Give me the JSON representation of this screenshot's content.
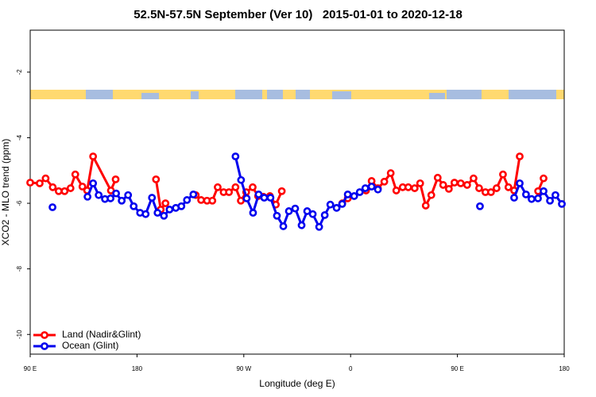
{
  "chart_data": {
    "type": "line",
    "title": "52.5N-57.5N September (Ver 10)   2015-01-01 to 2020-12-18",
    "x_label": "Longitude (deg E)",
    "y_label": "XCO2 - MLO trend (ppm)",
    "xlim": [
      90,
      540
    ],
    "ylim": [
      -10.6,
      -0.72
    ],
    "xticks": [
      {
        "value": 90,
        "label": "90 E"
      },
      {
        "value": 180,
        "label": "180"
      },
      {
        "value": 270,
        "label": "90 W"
      },
      {
        "value": 360,
        "label": "0"
      },
      {
        "value": 450,
        "label": "90 E"
      },
      {
        "value": 540,
        "label": "180"
      }
    ],
    "yticks": [
      -2,
      -4,
      -6,
      -8,
      -10
    ],
    "legend_position": "bottom-left",
    "series": [
      {
        "name": "Land (Nadir&Glint)",
        "color": "#ff0000",
        "x": [
          90,
          98,
          103,
          109,
          114,
          119,
          124,
          128,
          134,
          138,
          143,
          158,
          162,
          null,
          196,
          200,
          204,
          null,
          229.5,
          234,
          239,
          243.5,
          248,
          253,
          257.5,
          263,
          267.5,
          272,
          277.5,
          282,
          286.5,
          292,
          297,
          302,
          null,
          353,
          357.6,
          373,
          377.7,
          383,
          388.4,
          393.8,
          398.5,
          403.9,
          408.6,
          414,
          418.6,
          423.3,
          428,
          433.4,
          438,
          442.8,
          447.5,
          452.8,
          458.2,
          463.6,
          468.3,
          473.6,
          478.3,
          483,
          488.4,
          493,
          497.8,
          502.5,
          null,
          518,
          522.6
        ],
        "values": [
          -5.37,
          -5.39,
          -5.24,
          -5.51,
          -5.63,
          -5.63,
          -5.54,
          -5.12,
          -5.49,
          -5.61,
          -4.57,
          -5.61,
          -5.27,
          null,
          -5.27,
          -6.19,
          -6.0,
          null,
          -5.75,
          -5.9,
          -5.92,
          -5.92,
          -5.51,
          -5.66,
          -5.66,
          -5.51,
          -5.92,
          -5.66,
          -5.51,
          -5.78,
          -5.8,
          -5.78,
          -6.04,
          -5.63,
          null,
          -6.0,
          -5.85,
          -5.61,
          -5.32,
          -5.54,
          -5.34,
          -5.08,
          -5.61,
          -5.51,
          -5.51,
          -5.54,
          -5.39,
          -6.07,
          -5.75,
          -5.22,
          -5.44,
          -5.56,
          -5.37,
          -5.39,
          -5.44,
          -5.24,
          -5.54,
          -5.66,
          -5.66,
          -5.54,
          -5.12,
          -5.51,
          -5.61,
          -4.57,
          null,
          -5.63,
          -5.24
        ]
      },
      {
        "name": "Ocean (Glint)",
        "color": "#0000ee",
        "x": [
          108.8,
          null,
          138.3,
          143,
          147.7,
          153,
          157.7,
          162.4,
          167.1,
          172.5,
          177.2,
          182.6,
          187.3,
          192.6,
          197.3,
          202.7,
          207.4,
          212.7,
          217.4,
          222.1,
          227.5,
          null,
          263,
          267.7,
          272.4,
          277.8,
          282.5,
          287.2,
          292.5,
          297.9,
          303.3,
          308,
          313.3,
          318.7,
          323.4,
          328.1,
          333.5,
          338.2,
          342.9,
          348.2,
          352.9,
          357.6,
          363,
          367.7,
          372.4,
          377.7,
          383,
          null,
          469,
          null,
          497.8,
          502.5,
          507.8,
          512.5,
          517.9,
          522.6,
          528,
          532.6,
          538
        ],
        "values": [
          -6.12,
          null,
          -5.8,
          -5.39,
          -5.75,
          -5.87,
          -5.85,
          -5.7,
          -5.92,
          -5.75,
          -6.09,
          -6.29,
          -6.33,
          -5.83,
          -6.29,
          -6.38,
          -6.19,
          -6.14,
          -6.09,
          -5.9,
          -5.73,
          null,
          -4.57,
          -5.29,
          -5.85,
          -6.29,
          -5.73,
          -5.83,
          -5.83,
          -6.38,
          -6.7,
          -6.24,
          -6.16,
          -6.67,
          -6.24,
          -6.33,
          -6.72,
          -6.36,
          -6.04,
          -6.14,
          -6.02,
          -5.73,
          -5.78,
          -5.66,
          -5.54,
          -5.49,
          -5.58,
          null,
          -6.09,
          null,
          -5.83,
          -5.39,
          -5.73,
          -5.87,
          -5.85,
          -5.63,
          -5.92,
          -5.75,
          -6.02
        ]
      }
    ]
  }
}
